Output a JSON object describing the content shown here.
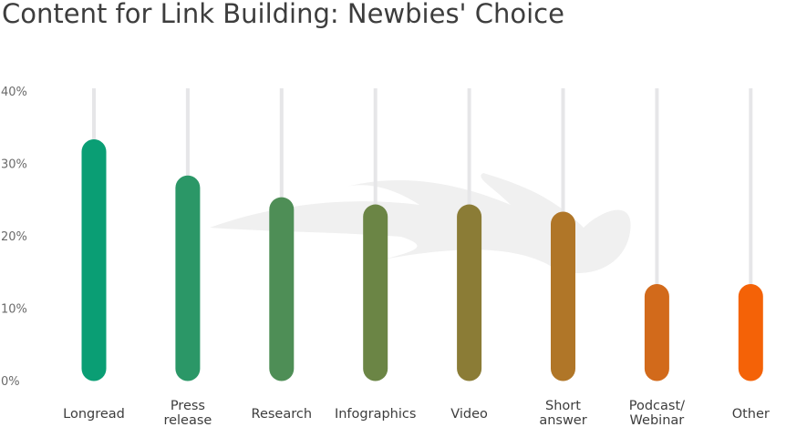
{
  "chart_data": {
    "type": "bar",
    "title": "Content for Link Building: Newbies' Choice",
    "categories": [
      [
        "Longread"
      ],
      [
        "Press",
        "release"
      ],
      [
        "Research"
      ],
      [
        "Infographics"
      ],
      [
        "Video"
      ],
      [
        "Short",
        "answer"
      ],
      [
        "Podcast/",
        "Webinar"
      ],
      [
        "Other"
      ]
    ],
    "values": [
      30,
      25,
      22,
      21,
      21,
      20,
      10,
      10
    ],
    "colors": [
      "#0a9e74",
      "#2b9767",
      "#4e8e56",
      "#6b8545",
      "#8b7c36",
      "#b07628",
      "#d26a1b",
      "#f46207"
    ],
    "yticks": [
      "0%",
      "10%",
      "20%",
      "30%",
      "40%"
    ],
    "ylim": [
      0,
      40
    ],
    "grid": false,
    "track_color": "#e6e6e8"
  }
}
